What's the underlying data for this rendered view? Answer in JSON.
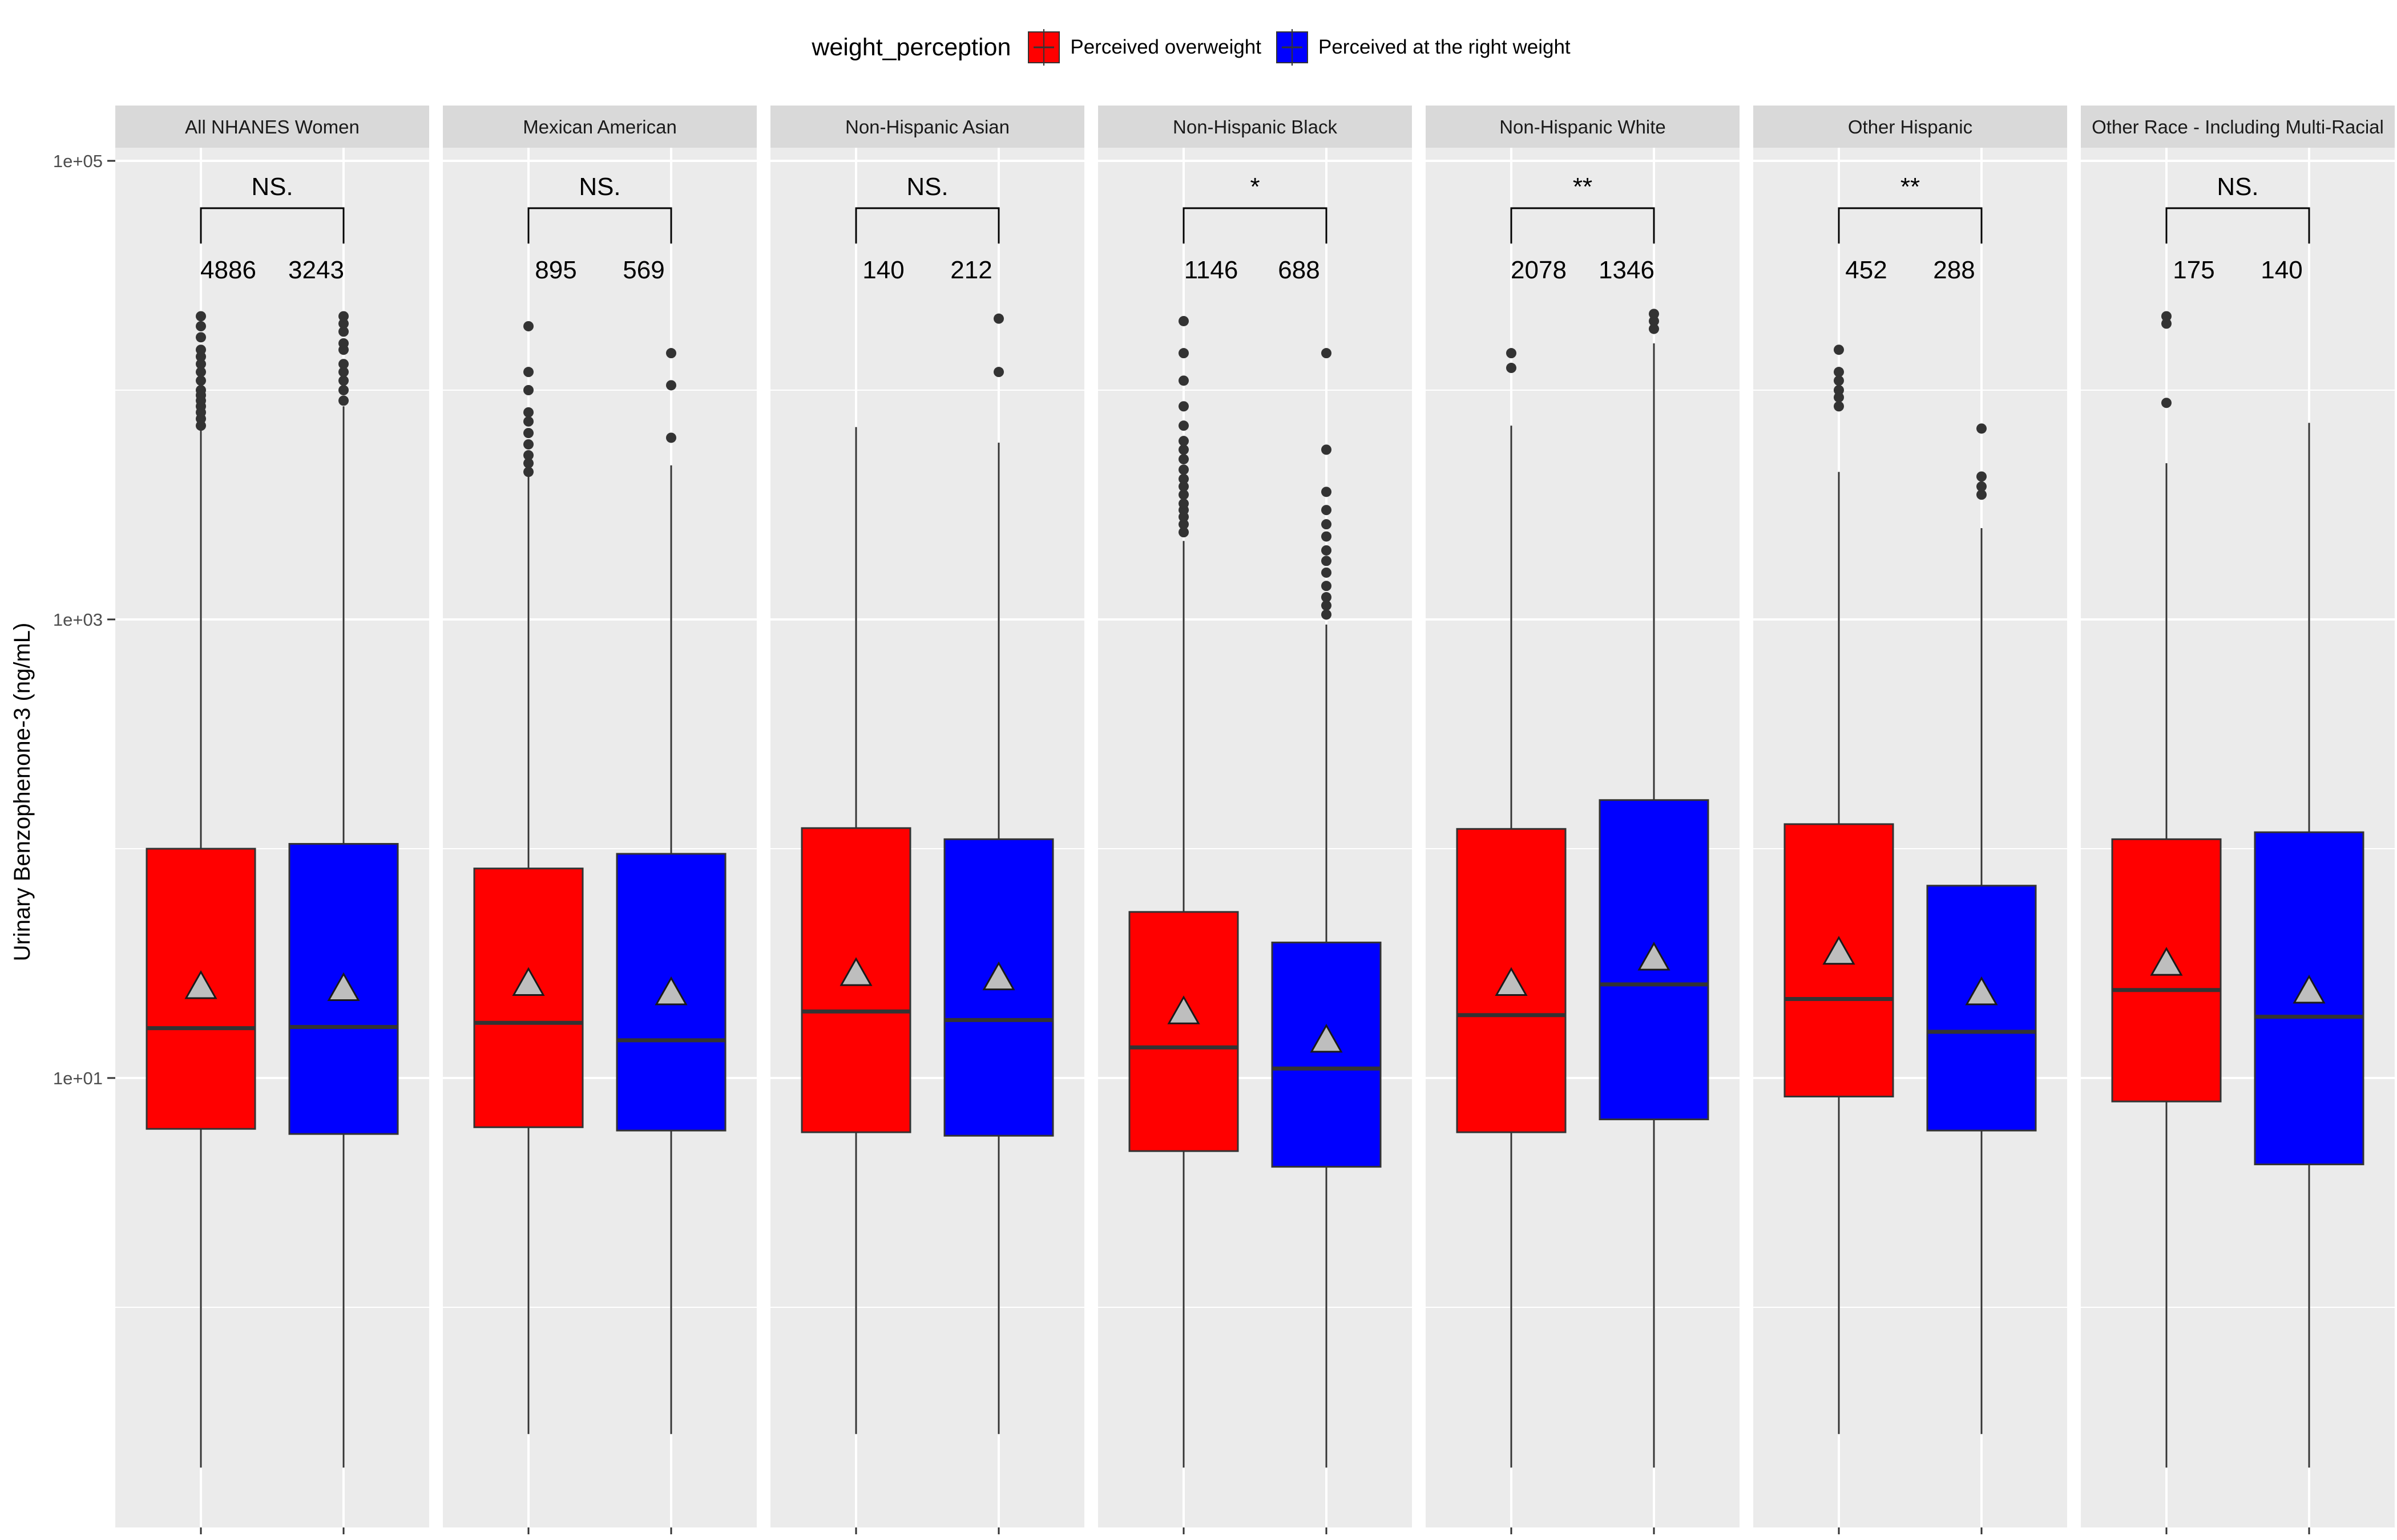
{
  "legend": {
    "title": "weight_perception",
    "items": [
      {
        "label": "Perceived overweight",
        "color": "#ff0000"
      },
      {
        "label": "Perceived at the right weight",
        "color": "#0000ff"
      }
    ]
  },
  "chart_data": {
    "type": "box",
    "ylabel": "Urinary Benzophenone-3 (ng/mL)",
    "xlabel": "",
    "yscale": "log10",
    "ylim": [
      0.05,
      150000
    ],
    "y_ticks": [
      {
        "value": 10,
        "label": "1e+01"
      },
      {
        "value": 1000,
        "label": "1e+03"
      },
      {
        "value": 100000,
        "label": "1e+05"
      }
    ],
    "grid": true,
    "legend_position": "top",
    "series": [
      {
        "name": "Perceived overweight",
        "color": "#ff0000"
      },
      {
        "name": "Perceived at the right weight",
        "color": "#0000ff"
      }
    ],
    "panels": [
      {
        "title": "All NHANES Women",
        "significance": "NS.",
        "groups": [
          {
            "series": "Perceived overweight",
            "n": "4886",
            "min": 0.2,
            "q1": 6.0,
            "median": 16.5,
            "q3": 100,
            "max": 6800,
            "mean": 25,
            "outliers": [
              7000,
              7500,
              8000,
              8500,
              9000,
              9500,
              10000,
              11000,
              12000,
              13000,
              14000,
              15000,
              17000,
              19000,
              21000
            ]
          },
          {
            "series": "Perceived at the right weight",
            "n": "3243",
            "min": 0.2,
            "q1": 5.7,
            "median": 16.7,
            "q3": 105,
            "max": 8500,
            "mean": 24.5,
            "outliers": [
              9000,
              10000,
              11000,
              12000,
              13000,
              15000,
              16000,
              18000,
              19500,
              21000
            ]
          }
        ]
      },
      {
        "title": "Mexican American",
        "significance": "NS.",
        "groups": [
          {
            "series": "Perceived overweight",
            "n": "895",
            "min": 0.28,
            "q1": 6.1,
            "median": 17.4,
            "q3": 82,
            "max": 4200,
            "mean": 25.8,
            "outliers": [
              4400,
              4800,
              5200,
              5800,
              6500,
              7300,
              8000,
              10000,
              12000,
              19000
            ]
          },
          {
            "series": "Perceived at the right weight",
            "n": "569",
            "min": 0.28,
            "q1": 5.9,
            "median": 14.6,
            "q3": 95,
            "max": 4700,
            "mean": 23.5,
            "outliers": [
              6200,
              10500,
              14500
            ]
          }
        ]
      },
      {
        "title": "Non-Hispanic Asian",
        "significance": "NS.",
        "groups": [
          {
            "series": "Perceived overweight",
            "n": "140",
            "min": 0.28,
            "q1": 5.8,
            "median": 19.5,
            "q3": 123,
            "max": 6900,
            "mean": 28.5,
            "outliers": []
          },
          {
            "series": "Perceived at the right weight",
            "n": "212",
            "min": 0.28,
            "q1": 5.6,
            "median": 17.9,
            "q3": 110,
            "max": 5900,
            "mean": 27.3,
            "outliers": [
              12000,
              20500
            ]
          }
        ]
      },
      {
        "title": "Non-Hispanic Black",
        "significance": "*",
        "groups": [
          {
            "series": "Perceived overweight",
            "n": "1146",
            "min": 0.2,
            "q1": 4.8,
            "median": 13.6,
            "q3": 53,
            "max": 2200,
            "mean": 19.4,
            "outliers": [
              2400,
              2600,
              2800,
              3000,
              3200,
              3500,
              3800,
              4100,
              4500,
              5000,
              5500,
              6000,
              7000,
              8500,
              11000,
              14500,
              20000
            ]
          },
          {
            "series": "Perceived at the right weight",
            "n": "688",
            "min": 0.2,
            "q1": 4.1,
            "median": 11.0,
            "q3": 39,
            "max": 950,
            "mean": 14.6,
            "outliers": [
              1050,
              1150,
              1250,
              1400,
              1600,
              1800,
              2000,
              2300,
              2600,
              3000,
              3600,
              5500,
              14500
            ]
          }
        ]
      },
      {
        "title": "Non-Hispanic White",
        "significance": "**",
        "groups": [
          {
            "series": "Perceived overweight",
            "n": "2078",
            "min": 0.2,
            "q1": 5.8,
            "median": 18.8,
            "q3": 122,
            "max": 7000,
            "mean": 25.8,
            "outliers": [
              12500,
              14500
            ]
          },
          {
            "series": "Perceived at the right weight",
            "n": "1346",
            "min": 0.2,
            "q1": 6.6,
            "median": 25.6,
            "q3": 163,
            "max": 16000,
            "mean": 33.3,
            "outliers": [
              18500,
              20000,
              21500
            ]
          }
        ]
      },
      {
        "title": "Other Hispanic",
        "significance": "**",
        "groups": [
          {
            "series": "Perceived overweight",
            "n": "452",
            "min": 0.28,
            "q1": 8.3,
            "median": 22.1,
            "q3": 128,
            "max": 4400,
            "mean": 35.3,
            "outliers": [
              8500,
              9300,
              10000,
              11000,
              12000,
              15000
            ]
          },
          {
            "series": "Perceived at the right weight",
            "n": "288",
            "min": 0.28,
            "q1": 5.9,
            "median": 15.9,
            "q3": 69,
            "max": 2500,
            "mean": 23.5,
            "outliers": [
              3500,
              3800,
              4200,
              6800
            ]
          }
        ]
      },
      {
        "title": "Other Race - Including Multi-Racial",
        "significance": "NS.",
        "groups": [
          {
            "series": "Perceived overweight",
            "n": "175",
            "min": 0.2,
            "q1": 7.9,
            "median": 24.2,
            "q3": 110,
            "max": 4800,
            "mean": 31.6,
            "outliers": [
              8800,
              19500,
              21000
            ]
          },
          {
            "series": "Perceived at the right weight",
            "n": "140",
            "min": 0.2,
            "q1": 4.2,
            "median": 18.5,
            "q3": 118,
            "max": 7200,
            "mean": 23.9,
            "outliers": []
          }
        ]
      }
    ]
  }
}
